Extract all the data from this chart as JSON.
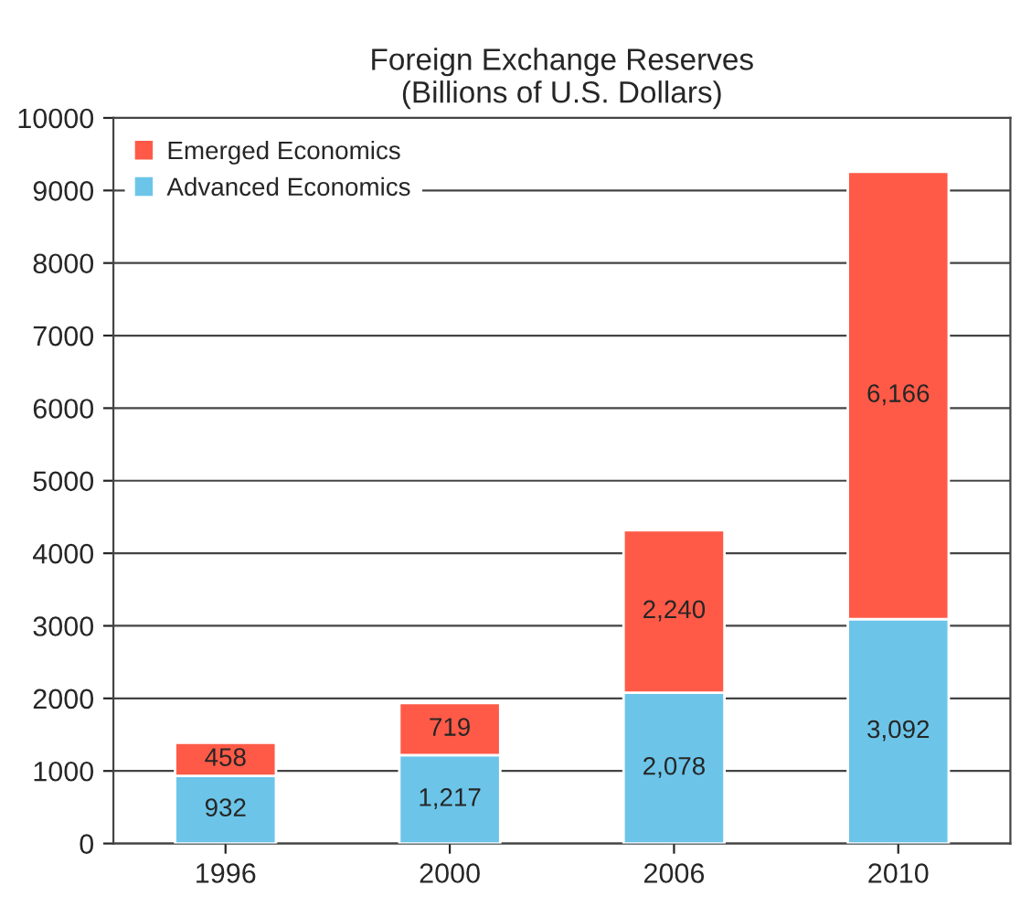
{
  "chart_data": {
    "type": "bar",
    "title": "Foreign Exchange Reserves\n(Billions of U.S. Dollars)",
    "categories": [
      "1996",
      "2000",
      "2006",
      "2010"
    ],
    "stacked": true,
    "series": [
      {
        "name": "Advanced Economics",
        "color": "#6cc5e9",
        "values": [
          932,
          1217,
          2078,
          3092
        ],
        "value_labels": [
          "932",
          "1,217",
          "2,078",
          "3,092"
        ]
      },
      {
        "name": "Emerged Economics",
        "color": "#ff5a47",
        "values": [
          458,
          719,
          2240,
          6166
        ],
        "value_labels": [
          "458",
          "719",
          "2,240",
          "6,166"
        ]
      }
    ],
    "ylim": [
      0,
      10000
    ],
    "yticks": [
      0,
      1000,
      2000,
      3000,
      4000,
      5000,
      6000,
      7000,
      8000,
      9000,
      10000
    ],
    "grid": "y",
    "legend": "top left"
  }
}
